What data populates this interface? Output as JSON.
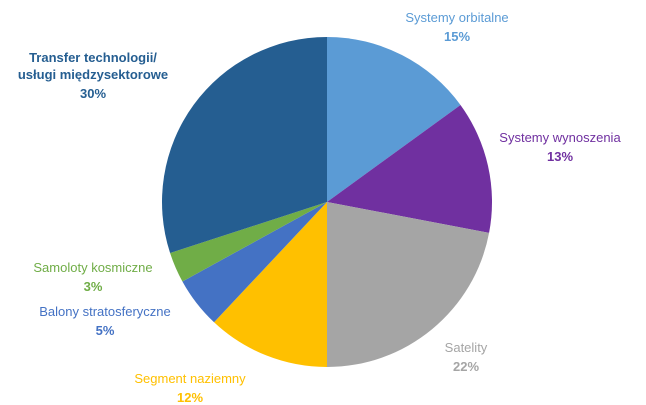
{
  "chart_data": {
    "type": "pie",
    "title": "",
    "slices": [
      {
        "label": "Systemy orbitalne",
        "value": 15,
        "value_label": "15%",
        "color": "#5b9bd5"
      },
      {
        "label": "Systemy wynoszenia",
        "value": 13,
        "value_label": "13%",
        "color": "#7030a0"
      },
      {
        "label": "Satelity",
        "value": 22,
        "value_label": "22%",
        "color": "#a5a5a5"
      },
      {
        "label": "Segment naziemny",
        "value": 12,
        "value_label": "12%",
        "color": "#ffc000"
      },
      {
        "label": "Balony stratosferyczne",
        "value": 5,
        "value_label": "5%",
        "color": "#4472c4"
      },
      {
        "label": "Samoloty kosmiczne",
        "value": 3,
        "value_label": "3%",
        "color": "#70ad47"
      },
      {
        "label": "Transfer technologii/\nusługi międzysektorowe",
        "value": 30,
        "value_label": "30%",
        "color": "#255e91"
      }
    ],
    "start_angle_deg": 0,
    "direction": "clockwise",
    "legend": "none",
    "label_colors": {
      "Systemy orbitalne": "#5b9bd5",
      "Systemy wynoszenia": "#7030a0",
      "Satelity": "#a5a5a5",
      "Segment naziemny": "#ffc000",
      "Balony stratosferyczne": "#4472c4",
      "Samoloty kosmiczne": "#70ad47",
      "Transfer technologii/\nusługi międzysektorowe": "#255e91"
    }
  }
}
